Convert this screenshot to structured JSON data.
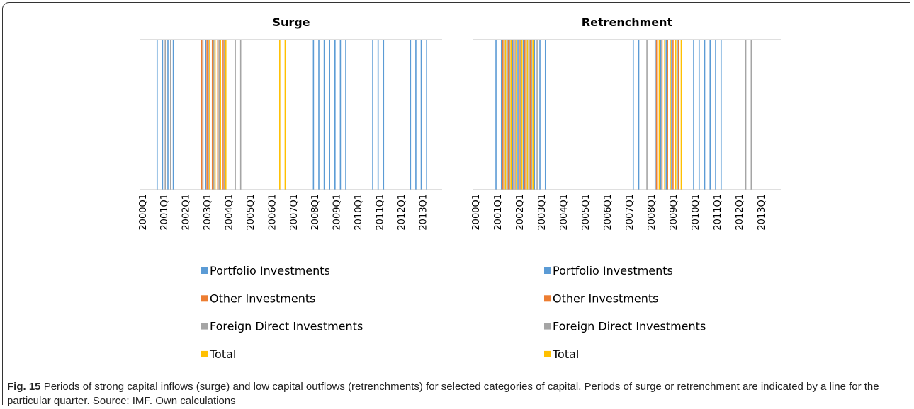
{
  "chart_data": [
    {
      "type": "bar",
      "title": "Surge",
      "categories": [
        "2000Q1",
        null,
        null,
        null,
        "2001Q1",
        null,
        null,
        null,
        "2002Q1",
        null,
        null,
        null,
        "2003Q1",
        null,
        null,
        null,
        "2004Q1",
        null,
        null,
        null,
        "2005Q1",
        null,
        null,
        null,
        "2006Q1",
        null,
        null,
        null,
        "2007Q1",
        null,
        null,
        null,
        "2008Q1",
        null,
        null,
        null,
        "2009Q1",
        null,
        null,
        null,
        "2010Q1",
        null,
        null,
        null,
        "2011Q1",
        null,
        null,
        null,
        "2012Q1",
        null,
        null,
        null,
        "2013Q1",
        null,
        null,
        null
      ],
      "ylim": [
        0,
        1
      ],
      "series": [
        {
          "name": "Portfolio Investments",
          "color": "#5b9bd5",
          "values": [
            0,
            0,
            0,
            1,
            1,
            1,
            1,
            0,
            0,
            0,
            0,
            0,
            1,
            0,
            0,
            0,
            0,
            0,
            0,
            0,
            0,
            0,
            0,
            0,
            0,
            0,
            0,
            0,
            0,
            0,
            0,
            0,
            1,
            1,
            1,
            1,
            1,
            1,
            1,
            0,
            0,
            0,
            0,
            1,
            1,
            1,
            0,
            0,
            0,
            0,
            1,
            1,
            1,
            1,
            0,
            0
          ]
        },
        {
          "name": "Other Investments",
          "color": "#ed7d31",
          "values": [
            0,
            0,
            0,
            0,
            0,
            0,
            0,
            0,
            0,
            0,
            0,
            1,
            1,
            1,
            1,
            1,
            0,
            0,
            0,
            0,
            0,
            0,
            0,
            0,
            0,
            0,
            0,
            0,
            0,
            0,
            0,
            0,
            0,
            0,
            0,
            0,
            0,
            0,
            0,
            0,
            0,
            0,
            0,
            0,
            0,
            0,
            0,
            0,
            0,
            0,
            0,
            0,
            0,
            0,
            0,
            0
          ]
        },
        {
          "name": "Foreign Direct Investments",
          "color": "#a5a5a5",
          "values": [
            0,
            0,
            0,
            0,
            1,
            1,
            0,
            0,
            0,
            0,
            0,
            1,
            1,
            1,
            1,
            1,
            0,
            1,
            1,
            0,
            0,
            0,
            0,
            0,
            0,
            0,
            0,
            0,
            0,
            0,
            0,
            0,
            0,
            0,
            0,
            0,
            0,
            0,
            0,
            0,
            0,
            0,
            0,
            0,
            0,
            0,
            0,
            0,
            0,
            0,
            0,
            0,
            0,
            0,
            0,
            0
          ]
        },
        {
          "name": "Total",
          "color": "#ffc000",
          "values": [
            0,
            0,
            0,
            0,
            0,
            0,
            0,
            0,
            0,
            0,
            0,
            0,
            1,
            1,
            1,
            1,
            0,
            0,
            0,
            0,
            0,
            0,
            0,
            0,
            0,
            1,
            1,
            0,
            0,
            0,
            0,
            0,
            0,
            0,
            0,
            0,
            0,
            0,
            0,
            0,
            0,
            0,
            0,
            0,
            0,
            0,
            0,
            0,
            0,
            0,
            0,
            0,
            0,
            0,
            0,
            0
          ]
        }
      ]
    },
    {
      "type": "bar",
      "title": "Retrenchment",
      "categories": [
        "2000Q1",
        null,
        null,
        null,
        "2001Q1",
        null,
        null,
        null,
        "2002Q1",
        null,
        null,
        null,
        "2003Q1",
        null,
        null,
        null,
        "2004Q1",
        null,
        null,
        null,
        "2005Q1",
        null,
        null,
        null,
        "2006Q1",
        null,
        null,
        null,
        "2007Q1",
        null,
        null,
        null,
        "2008Q1",
        null,
        null,
        null,
        "2009Q1",
        null,
        null,
        null,
        "2010Q1",
        null,
        null,
        null,
        "2011Q1",
        null,
        null,
        null,
        "2012Q1",
        null,
        null,
        null,
        "2013Q1",
        null,
        null,
        null
      ],
      "ylim": [
        0,
        1
      ],
      "series": [
        {
          "name": "Portfolio Investments",
          "color": "#5b9bd5",
          "values": [
            0,
            0,
            0,
            0,
            1,
            1,
            1,
            1,
            1,
            1,
            1,
            1,
            1,
            1,
            0,
            0,
            0,
            0,
            0,
            0,
            0,
            0,
            0,
            0,
            0,
            0,
            0,
            0,
            0,
            1,
            1,
            0,
            0,
            1,
            1,
            1,
            1,
            1,
            0,
            0,
            1,
            1,
            1,
            1,
            1,
            1,
            0,
            0,
            0,
            0,
            0,
            0,
            0,
            0,
            0,
            0
          ]
        },
        {
          "name": "Other Investments",
          "color": "#ed7d31",
          "values": [
            0,
            0,
            0,
            0,
            0,
            1,
            1,
            1,
            1,
            1,
            1,
            0,
            0,
            0,
            0,
            0,
            0,
            0,
            0,
            0,
            0,
            0,
            0,
            0,
            0,
            0,
            0,
            0,
            0,
            0,
            0,
            0,
            0,
            1,
            1,
            1,
            1,
            1,
            0,
            0,
            0,
            0,
            0,
            0,
            0,
            0,
            0,
            0,
            0,
            0,
            0,
            0,
            0,
            0,
            0,
            0
          ]
        },
        {
          "name": "Foreign Direct Investments",
          "color": "#a5a5a5",
          "values": [
            0,
            0,
            0,
            0,
            0,
            1,
            1,
            1,
            1,
            1,
            1,
            1,
            0,
            0,
            0,
            0,
            0,
            0,
            0,
            0,
            0,
            0,
            0,
            0,
            0,
            0,
            0,
            0,
            0,
            0,
            0,
            1,
            0,
            0,
            0,
            0,
            0,
            0,
            0,
            0,
            0,
            0,
            0,
            0,
            0,
            0,
            0,
            0,
            0,
            1,
            1,
            0,
            0,
            0,
            0,
            0
          ]
        },
        {
          "name": "Total",
          "color": "#ffc000",
          "values": [
            0,
            0,
            0,
            0,
            0,
            1,
            1,
            1,
            1,
            1,
            1,
            0,
            0,
            0,
            0,
            0,
            0,
            0,
            0,
            0,
            0,
            0,
            0,
            0,
            0,
            0,
            0,
            0,
            0,
            0,
            0,
            0,
            0,
            1,
            1,
            1,
            1,
            1,
            0,
            0,
            0,
            0,
            0,
            0,
            0,
            0,
            0,
            0,
            0,
            0,
            0,
            0,
            0,
            0,
            0,
            0
          ]
        }
      ]
    }
  ],
  "caption": {
    "label": "Fig. 15",
    "text": "Periods of strong capital inflows (surge) and low capital outflows (retrenchments) for selected categories of capital. Periods of surge or retrenchment are indicated by a line for the particular quarter. Source: IMF. Own calculations"
  }
}
